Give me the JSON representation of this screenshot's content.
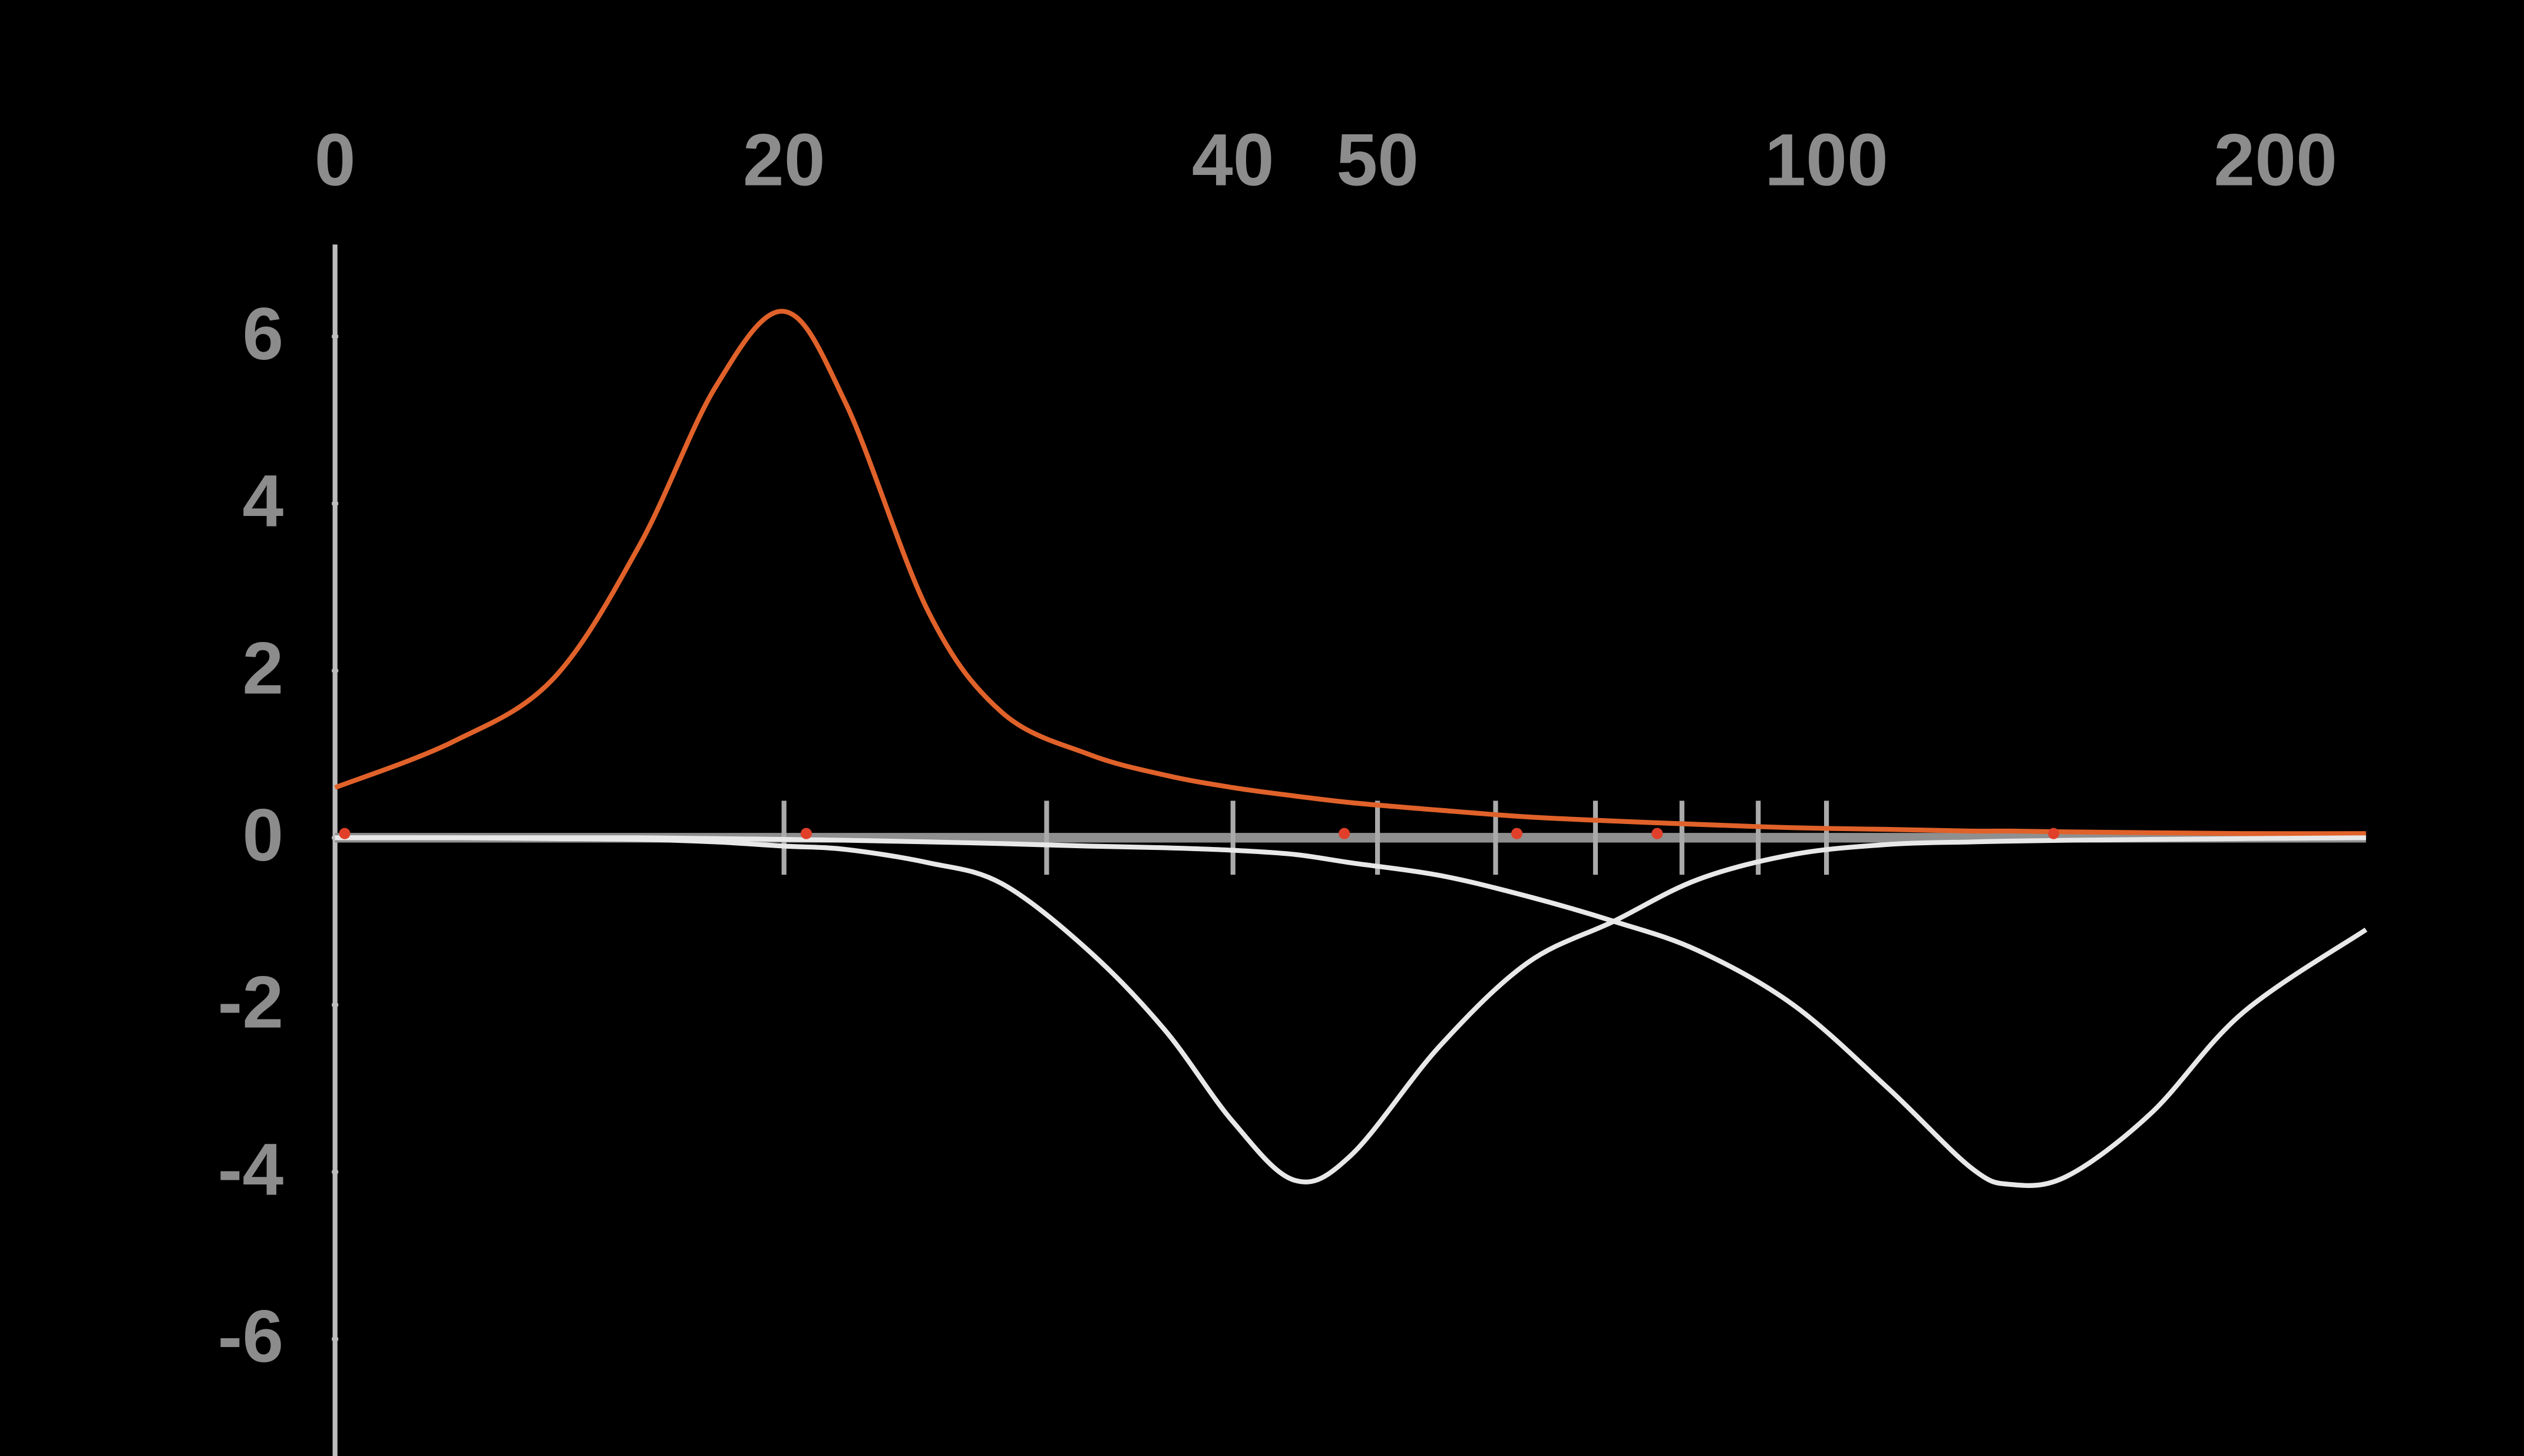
{
  "chart_data": {
    "type": "line",
    "xscale": "log",
    "xlim": [
      10,
      230
    ],
    "ylim": [
      -7.4,
      7.1
    ],
    "xticks": [
      {
        "value": 10,
        "label": "0"
      },
      20,
      40,
      50,
      100,
      200
    ],
    "xminorticks": [
      20,
      30,
      40,
      50,
      60,
      70,
      80,
      90,
      100
    ],
    "yticks": [
      6,
      4,
      2,
      0,
      -2,
      -4,
      -6
    ],
    "x": [
      10,
      12,
      14,
      16,
      18,
      20,
      22,
      25,
      28,
      32,
      36,
      40,
      44,
      48,
      55,
      63,
      72,
      82,
      95,
      110,
      125,
      133,
      145,
      165,
      190,
      230
    ],
    "series": [
      {
        "color": "#e0622a",
        "values": [
          0.6,
          1.15,
          1.9,
          3.5,
          5.4,
          6.3,
          5.2,
          2.7,
          1.5,
          1.0,
          0.75,
          0.6,
          0.5,
          0.42,
          0.33,
          0.25,
          0.2,
          0.16,
          0.12,
          0.1,
          0.08,
          0.08,
          0.07,
          0.06,
          0.05,
          0.05
        ]
      },
      {
        "color": "#e8e8e8",
        "values": [
          0,
          0,
          -0.01,
          -0.02,
          -0.05,
          -0.1,
          -0.14,
          -0.3,
          -0.55,
          -1.35,
          -2.3,
          -3.4,
          -4.1,
          -3.8,
          -2.5,
          -1.5,
          -1.0,
          -0.5,
          -0.2,
          -0.08,
          -0.05,
          -0.04,
          -0.03,
          -0.02,
          -0.01,
          0
        ]
      },
      {
        "color": "#e8e8e8",
        "values": [
          0,
          0,
          0,
          0,
          -0.01,
          -0.02,
          -0.03,
          -0.05,
          -0.07,
          -0.1,
          -0.12,
          -0.15,
          -0.2,
          -0.3,
          -0.45,
          -0.7,
          -1.0,
          -1.35,
          -2.0,
          -3.0,
          -3.95,
          -4.15,
          -4.05,
          -3.3,
          -2.1,
          -1.1
        ]
      }
    ],
    "points": {
      "color": "#e0402a",
      "x": [
        10.15,
        20.7,
        47.5,
        62,
        77,
        142
      ],
      "values": [
        0.05,
        0.05,
        0.05,
        0.05,
        0.05,
        0.05
      ]
    }
  }
}
